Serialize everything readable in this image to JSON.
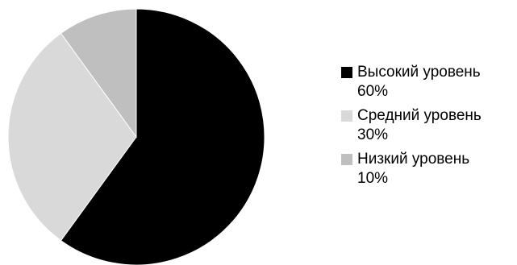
{
  "chart_data": {
    "type": "pie",
    "title": "",
    "start_angle_deg": 0,
    "direction": "clockwise",
    "legend_position": "right",
    "slices": [
      {
        "name": "Высокий уровень",
        "value": 60,
        "label": "60%",
        "color": "#000000"
      },
      {
        "name": "Средний уровень",
        "value": 30,
        "label": "30%",
        "color": "#d9d9d9"
      },
      {
        "name": "Низкий уровень",
        "value": 10,
        "label": "10%",
        "color": "#bfbfbf"
      }
    ]
  }
}
